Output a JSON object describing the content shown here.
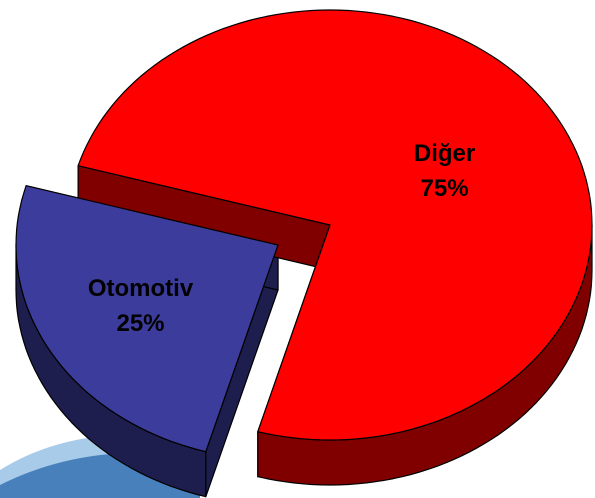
{
  "chart_data": {
    "type": "pie",
    "categories": [
      "Otomotiv",
      "Diğer"
    ],
    "values": [
      25,
      75
    ],
    "value_labels": [
      "25%",
      "75%"
    ],
    "colors": [
      "#3c3c9c",
      "#ff0000"
    ]
  }
}
